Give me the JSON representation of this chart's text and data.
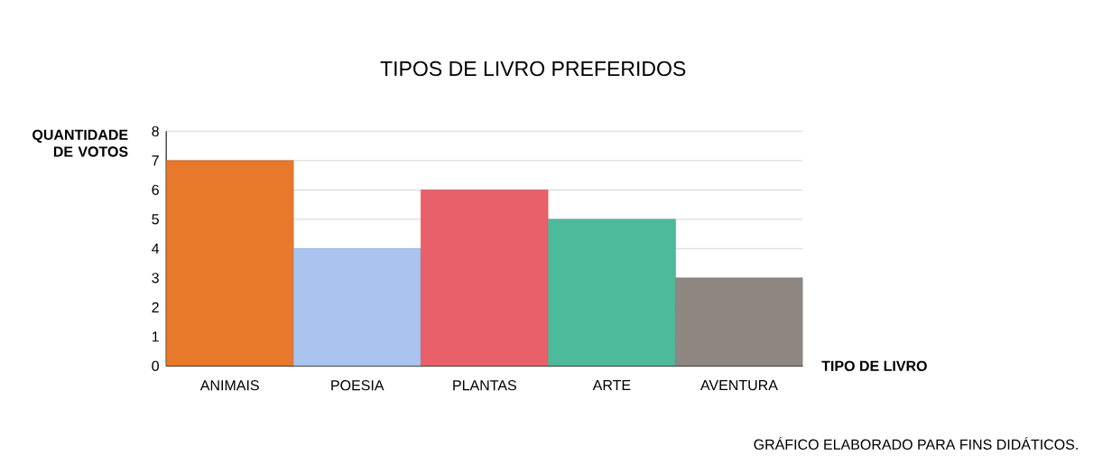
{
  "chart_data": {
    "type": "bar",
    "title": "TIPOS DE LIVRO PREFERIDOS",
    "xlabel": "TIPO DE LIVRO",
    "ylabel": "QUANTIDADE DE VOTOS",
    "categories": [
      "ANIMAIS",
      "POESIA",
      "PLANTAS",
      "ARTE",
      "AVENTURA"
    ],
    "values": [
      7,
      4,
      6,
      5,
      3
    ],
    "colors": [
      "#e8782a",
      "#a9c4ef",
      "#e8616a",
      "#4dba9c",
      "#8e8680"
    ],
    "ylim": [
      0,
      8
    ],
    "yticks": [
      0,
      1,
      2,
      3,
      4,
      5,
      6,
      7,
      8
    ],
    "grid": "y",
    "annotations": [
      "GRÁFICO ELABORADO PARA FINS DIDÁTICOS."
    ]
  }
}
